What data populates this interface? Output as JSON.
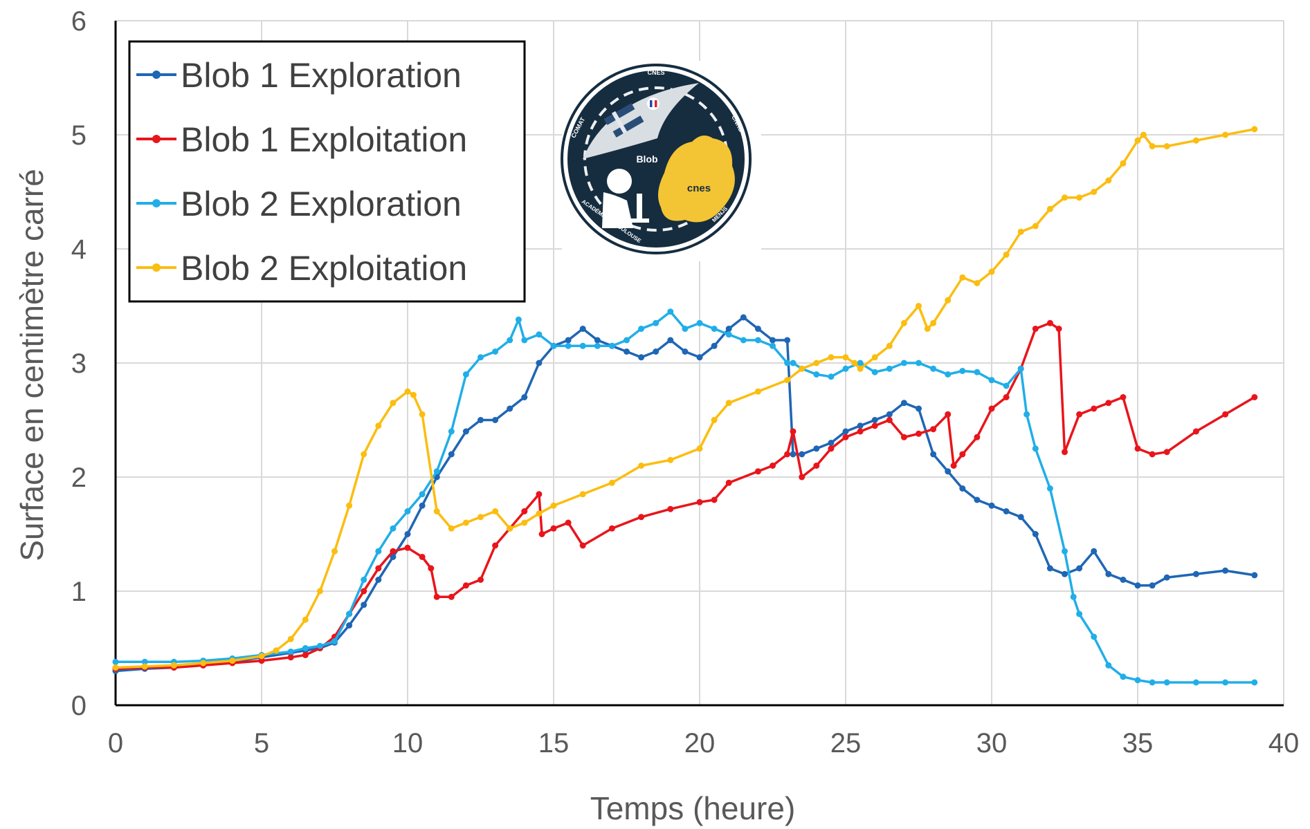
{
  "chart_data": {
    "type": "line",
    "xlabel": "Temps (heure)",
    "ylabel": "Surface en centimètre carré",
    "xlim": [
      0,
      40
    ],
    "ylim": [
      0,
      6
    ],
    "xticks": [
      0,
      5,
      10,
      15,
      20,
      25,
      30,
      35,
      40
    ],
    "yticks": [
      0,
      1,
      2,
      3,
      4,
      5,
      6
    ],
    "grid": true,
    "legend_position": "top-left",
    "logo": {
      "text_top": "CNES",
      "text_left": "COMAT",
      "text_right": "CNRS",
      "text_center": "Blob",
      "text_brand": "cnes",
      "text_bottom_left": "ACADÉMIE DE TOULOUSE",
      "text_bottom_right": "MENJS"
    },
    "series": [
      {
        "name": "Blob 1 Exploration",
        "color": "#1f66b5",
        "x": [
          0,
          1,
          2,
          3,
          4,
          5,
          6,
          6.5,
          7,
          7.5,
          8,
          8.5,
          9,
          9.5,
          10,
          10.5,
          11,
          11.5,
          12,
          12.5,
          13,
          13.5,
          14,
          14.5,
          15,
          15.5,
          16,
          16.5,
          17,
          17.5,
          18,
          18.5,
          19,
          19.5,
          20,
          20.5,
          21,
          21.5,
          22,
          22.5,
          23,
          23.2,
          23.5,
          24,
          24.5,
          25,
          25.5,
          26,
          26.5,
          27,
          27.5,
          28,
          28.5,
          29,
          29.5,
          30,
          30.5,
          31,
          31.5,
          32,
          32.5,
          33,
          33.5,
          34,
          34.5,
          35,
          35.5,
          36,
          37,
          38,
          39
        ],
        "y": [
          0.3,
          0.32,
          0.33,
          0.35,
          0.38,
          0.42,
          0.46,
          0.48,
          0.5,
          0.55,
          0.7,
          0.88,
          1.1,
          1.3,
          1.5,
          1.75,
          2.0,
          2.2,
          2.4,
          2.5,
          2.5,
          2.6,
          2.7,
          3.0,
          3.15,
          3.2,
          3.3,
          3.2,
          3.15,
          3.1,
          3.05,
          3.1,
          3.2,
          3.1,
          3.05,
          3.15,
          3.3,
          3.4,
          3.3,
          3.2,
          3.2,
          2.2,
          2.2,
          2.25,
          2.3,
          2.4,
          2.45,
          2.5,
          2.55,
          2.65,
          2.6,
          2.2,
          2.05,
          1.9,
          1.8,
          1.75,
          1.7,
          1.65,
          1.5,
          1.2,
          1.15,
          1.2,
          1.35,
          1.15,
          1.1,
          1.05,
          1.05,
          1.12,
          1.15,
          1.18,
          1.14
        ]
      },
      {
        "name": "Blob 1 Exploitation",
        "color": "#e8151b",
        "x": [
          0,
          1,
          2,
          3,
          4,
          5,
          6,
          6.5,
          7,
          7.5,
          8,
          8.5,
          9,
          9.5,
          10,
          10.5,
          10.8,
          11,
          11.5,
          12,
          12.5,
          13,
          13.5,
          14,
          14.5,
          14.6,
          15,
          15.5,
          16,
          17,
          18,
          19,
          20,
          20.5,
          21,
          22,
          22.5,
          23,
          23.2,
          23.5,
          24,
          24.5,
          25,
          25.5,
          26,
          26.5,
          27,
          27.5,
          28,
          28.5,
          28.7,
          29,
          29.5,
          30,
          30.5,
          31,
          31.5,
          32,
          32.3,
          32.5,
          33,
          33.5,
          34,
          34.5,
          35,
          35.5,
          36,
          37,
          38,
          39
        ],
        "y": [
          0.32,
          0.33,
          0.33,
          0.35,
          0.37,
          0.39,
          0.42,
          0.44,
          0.5,
          0.6,
          0.8,
          1.0,
          1.2,
          1.35,
          1.38,
          1.3,
          1.2,
          0.95,
          0.95,
          1.05,
          1.1,
          1.4,
          1.55,
          1.7,
          1.85,
          1.5,
          1.55,
          1.6,
          1.4,
          1.55,
          1.65,
          1.72,
          1.78,
          1.8,
          1.95,
          2.05,
          2.1,
          2.2,
          2.4,
          2.0,
          2.1,
          2.25,
          2.35,
          2.4,
          2.45,
          2.5,
          2.35,
          2.38,
          2.42,
          2.55,
          2.1,
          2.2,
          2.35,
          2.6,
          2.7,
          2.95,
          3.3,
          3.35,
          3.3,
          2.22,
          2.55,
          2.6,
          2.65,
          2.7,
          2.25,
          2.2,
          2.22,
          2.4,
          2.55,
          2.7
        ]
      },
      {
        "name": "Blob 2 Exploration",
        "color": "#21aee8",
        "x": [
          0,
          1,
          2,
          3,
          4,
          5,
          6,
          6.5,
          7,
          7.5,
          8,
          8.5,
          9,
          9.5,
          10,
          10.5,
          11,
          11.5,
          12,
          12.5,
          13,
          13.5,
          13.8,
          14,
          14.5,
          15,
          15.5,
          16,
          16.5,
          17,
          17.5,
          18,
          18.5,
          19,
          19.5,
          20,
          20.5,
          21,
          21.5,
          22,
          22.5,
          23,
          23.2,
          23.5,
          24,
          24.5,
          25,
          25.5,
          26,
          26.5,
          27,
          27.5,
          28,
          28.5,
          29,
          29.5,
          30,
          30.5,
          31,
          31.2,
          31.5,
          32,
          32.5,
          32.8,
          33,
          33.5,
          34,
          34.5,
          35,
          35.5,
          36,
          37,
          38,
          39
        ],
        "y": [
          0.38,
          0.38,
          0.38,
          0.39,
          0.41,
          0.44,
          0.47,
          0.5,
          0.52,
          0.56,
          0.8,
          1.1,
          1.35,
          1.55,
          1.7,
          1.85,
          2.05,
          2.4,
          2.9,
          3.05,
          3.1,
          3.2,
          3.38,
          3.2,
          3.25,
          3.15,
          3.15,
          3.15,
          3.15,
          3.15,
          3.2,
          3.3,
          3.35,
          3.45,
          3.3,
          3.35,
          3.3,
          3.25,
          3.2,
          3.2,
          3.15,
          3.0,
          3.0,
          2.95,
          2.9,
          2.88,
          2.95,
          3.0,
          2.92,
          2.95,
          3.0,
          3.0,
          2.95,
          2.9,
          2.93,
          2.92,
          2.85,
          2.8,
          2.95,
          2.55,
          2.25,
          1.9,
          1.35,
          0.95,
          0.8,
          0.6,
          0.35,
          0.25,
          0.22,
          0.2,
          0.2,
          0.2,
          0.2,
          0.2
        ]
      },
      {
        "name": "Blob 2 Exploitation",
        "color": "#fbbd10",
        "x": [
          0,
          1,
          2,
          3,
          4,
          5,
          5.5,
          6,
          6.5,
          7,
          7.5,
          8,
          8.5,
          9,
          9.5,
          10,
          10.2,
          10.5,
          11,
          11.5,
          12,
          12.5,
          13,
          13.5,
          14,
          14.5,
          15,
          16,
          17,
          18,
          19,
          20,
          20.5,
          21,
          22,
          23,
          23.5,
          24,
          24.5,
          25,
          25.3,
          25.5,
          26,
          26.5,
          27,
          27.5,
          27.8,
          28,
          28.5,
          29,
          29.5,
          30,
          30.5,
          31,
          31.5,
          32,
          32.5,
          33,
          33.5,
          34,
          34.5,
          35,
          35.2,
          35.5,
          36,
          37,
          38,
          39
        ],
        "y": [
          0.33,
          0.34,
          0.35,
          0.37,
          0.39,
          0.43,
          0.48,
          0.58,
          0.75,
          1.0,
          1.35,
          1.75,
          2.2,
          2.45,
          2.65,
          2.75,
          2.72,
          2.55,
          1.7,
          1.55,
          1.6,
          1.65,
          1.7,
          1.55,
          1.6,
          1.68,
          1.75,
          1.85,
          1.95,
          2.1,
          2.15,
          2.25,
          2.5,
          2.65,
          2.75,
          2.85,
          2.95,
          3.0,
          3.05,
          3.05,
          3.0,
          2.95,
          3.05,
          3.15,
          3.35,
          3.5,
          3.3,
          3.35,
          3.55,
          3.75,
          3.7,
          3.8,
          3.95,
          4.15,
          4.2,
          4.35,
          4.45,
          4.45,
          4.5,
          4.6,
          4.75,
          4.95,
          5.0,
          4.9,
          4.9,
          4.95,
          5.0,
          5.05
        ]
      }
    ]
  }
}
